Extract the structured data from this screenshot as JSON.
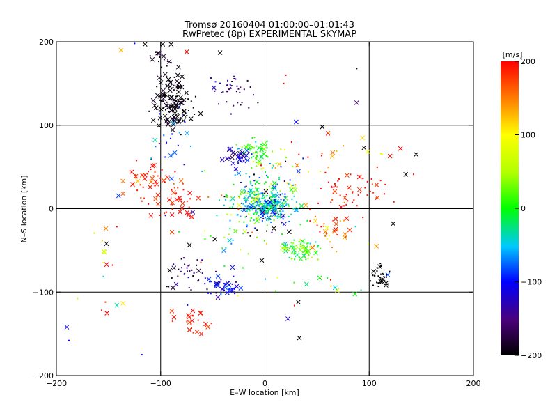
{
  "chart_data": {
    "type": "scatter",
    "title_lines": [
      "Tromsø 20160404 01:00:00–01:01:43",
      "RwPretec (8p) EXPERIMENTAL SKYMAP"
    ],
    "xlabel": "E–W location [km]",
    "ylabel": "N–S location [km]",
    "xlim": [
      -200,
      200
    ],
    "ylim": [
      -200,
      200
    ],
    "x_ticks": [
      -200,
      -100,
      0,
      100,
      200
    ],
    "y_ticks": [
      -200,
      -100,
      0,
      100,
      200
    ],
    "x_tick_labels": [
      "−200",
      "−100",
      "0",
      "100",
      "200"
    ],
    "y_tick_labels": [
      "−200",
      "−100",
      "0",
      "100",
      "200"
    ],
    "grid_lines_x": [
      -100,
      0,
      100
    ],
    "grid_lines_y": [
      -100,
      0,
      100
    ],
    "colorbar": {
      "unit": "[m/s]",
      "range": [
        -200,
        200
      ],
      "tick_values": [
        200,
        100,
        0,
        -100,
        -200
      ],
      "tick_labels": [
        "200",
        "100",
        "0",
        "−100",
        "−200"
      ],
      "colormap": "rainbow: black (−200) → purple → blue → cyan → green (0) → yellow → orange → red (200)"
    },
    "marker_types": [
      "dot",
      "cross"
    ],
    "clusters": [
      {
        "x": -4,
        "y": 8,
        "sx": 14,
        "sy": 13,
        "n": 260,
        "v": -20,
        "vs": 40,
        "cross": 0.08
      },
      {
        "x": 5,
        "y": 0,
        "sx": 10,
        "sy": 8,
        "n": 140,
        "v": -60,
        "vs": 40,
        "cross": 0.18
      },
      {
        "x": -8,
        "y": 70,
        "sx": 8,
        "sy": 6,
        "n": 60,
        "v": 5,
        "vs": 20,
        "cross": 0.1
      },
      {
        "x": -26,
        "y": 63,
        "sx": 6,
        "sy": 5,
        "n": 28,
        "v": -110,
        "vs": 30,
        "cross": 0.55
      },
      {
        "x": -88,
        "y": 128,
        "sx": 9,
        "sy": 17,
        "n": 130,
        "v": -195,
        "vs": 8,
        "cross": 0.55
      },
      {
        "x": -100,
        "y": 180,
        "sx": 6,
        "sy": 8,
        "n": 14,
        "v": -190,
        "vs": 10,
        "cross": 0.5
      },
      {
        "x": -30,
        "y": 140,
        "sx": 12,
        "sy": 10,
        "n": 40,
        "v": -155,
        "vs": 25,
        "cross": 0.1
      },
      {
        "x": 35,
        "y": -48,
        "sx": 10,
        "sy": 6,
        "n": 80,
        "v": 20,
        "vs": 35,
        "cross": 0.18
      },
      {
        "x": 60,
        "y": -30,
        "sx": 14,
        "sy": 12,
        "n": 35,
        "v": 150,
        "vs": 40,
        "cross": 0.3
      },
      {
        "x": -110,
        "y": 35,
        "sx": 14,
        "sy": 12,
        "n": 50,
        "v": 185,
        "vs": 15,
        "cross": 0.4
      },
      {
        "x": -85,
        "y": 5,
        "sx": 12,
        "sy": 10,
        "n": 30,
        "v": 190,
        "vs": 10,
        "cross": 0.4
      },
      {
        "x": -40,
        "y": -92,
        "sx": 10,
        "sy": 6,
        "n": 45,
        "v": -100,
        "vs": 20,
        "cross": 0.3
      },
      {
        "x": -75,
        "y": -75,
        "sx": 10,
        "sy": 12,
        "n": 40,
        "v": -170,
        "vs": 35,
        "cross": 0.2
      },
      {
        "x": 112,
        "y": -80,
        "sx": 5,
        "sy": 8,
        "n": 30,
        "v": -200,
        "vs": 3,
        "cross": 0.3
      },
      {
        "x": 80,
        "y": 20,
        "sx": 20,
        "sy": 12,
        "n": 55,
        "v": 190,
        "vs": 15,
        "cross": 0.25
      },
      {
        "x": -65,
        "y": -135,
        "sx": 10,
        "sy": 8,
        "n": 25,
        "v": 190,
        "vs": 15,
        "cross": 0.5
      },
      {
        "x": -90,
        "y": 80,
        "sx": 10,
        "sy": 18,
        "n": 25,
        "v": -90,
        "vs": 30,
        "cross": 0.2
      },
      {
        "x": 70,
        "y": 60,
        "sx": 25,
        "sy": 15,
        "n": 22,
        "v": 150,
        "vs": 60,
        "cross": 0.3
      },
      {
        "x": -20,
        "y": -30,
        "sx": 30,
        "sy": 25,
        "n": 60,
        "v": 0,
        "vs": 130,
        "cross": 0.2
      },
      {
        "x": 0,
        "y": 40,
        "sx": 25,
        "sy": 18,
        "n": 50,
        "v": 0,
        "vs": 120,
        "cross": 0.15
      },
      {
        "x": 60,
        "y": -100,
        "sx": 30,
        "sy": 15,
        "n": 14,
        "v": 50,
        "vs": 120,
        "cross": 0.4
      },
      {
        "x": -150,
        "y": -80,
        "sx": 15,
        "sy": 40,
        "n": 16,
        "v": 120,
        "vs": 100,
        "cross": 0.4
      }
    ],
    "outliers": [
      {
        "x": -138,
        "y": 190,
        "v": 130,
        "m": "x"
      },
      {
        "x": -75,
        "y": 188,
        "v": 200,
        "m": "x"
      },
      {
        "x": -43,
        "y": 187,
        "v": -200,
        "m": "x"
      },
      {
        "x": -115,
        "y": 197,
        "v": -200,
        "m": "x"
      },
      {
        "x": -98,
        "y": 197,
        "v": -200,
        "m": "x"
      },
      {
        "x": -90,
        "y": 197,
        "v": -200,
        "m": "x"
      },
      {
        "x": 88,
        "y": 127,
        "v": -150,
        "m": "x"
      },
      {
        "x": 30,
        "y": 104,
        "v": -100,
        "m": "x"
      },
      {
        "x": 55,
        "y": 98,
        "v": -200,
        "m": "x"
      },
      {
        "x": 95,
        "y": 73,
        "v": -200,
        "m": "x"
      },
      {
        "x": 130,
        "y": 72,
        "v": 200,
        "m": "x"
      },
      {
        "x": 145,
        "y": 65,
        "v": -200,
        "m": "x"
      },
      {
        "x": 120,
        "y": 63,
        "v": 200,
        "m": "x"
      },
      {
        "x": 135,
        "y": 41,
        "v": -200,
        "m": "x"
      },
      {
        "x": 123,
        "y": -18,
        "v": -200,
        "m": "x"
      },
      {
        "x": 107,
        "y": -45,
        "v": 140,
        "m": "x"
      },
      {
        "x": -152,
        "y": -42,
        "v": -200,
        "m": "x"
      },
      {
        "x": -122,
        "y": 33,
        "v": 120,
        "m": "x"
      },
      {
        "x": 33,
        "y": -155,
        "v": -200,
        "m": "x"
      },
      {
        "x": -3,
        "y": -62,
        "v": -200,
        "m": "x"
      },
      {
        "x": 32,
        "y": -112,
        "v": -200,
        "m": "x"
      },
      {
        "x": 22,
        "y": -132,
        "v": -120,
        "m": "x"
      },
      {
        "x": -190,
        "y": -142,
        "v": -100,
        "m": "x"
      },
      {
        "x": -188,
        "y": -158,
        "v": -100,
        "m": "dot"
      },
      {
        "x": -118,
        "y": -175,
        "v": -100,
        "m": "dot"
      },
      {
        "x": -153,
        "y": -112,
        "v": 180,
        "m": "dot"
      },
      {
        "x": 88,
        "y": 168,
        "v": -200,
        "m": "dot"
      },
      {
        "x": -125,
        "y": 198,
        "v": -100,
        "m": "dot"
      },
      {
        "x": -90,
        "y": 175,
        "v": -150,
        "m": "dot"
      },
      {
        "x": 18,
        "y": 150,
        "v": 200,
        "m": "dot"
      },
      {
        "x": 20,
        "y": 160,
        "v": 200,
        "m": "dot"
      }
    ]
  }
}
